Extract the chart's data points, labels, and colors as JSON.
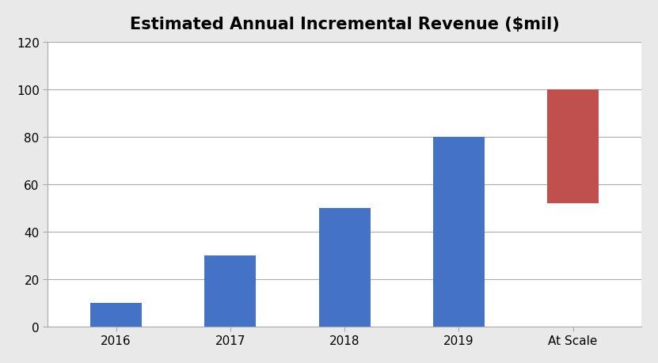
{
  "title": "Estimated Annual Incremental Revenue ($mil)",
  "categories": [
    "2016",
    "2017",
    "2018",
    "2019",
    "At Scale"
  ],
  "bar_bottoms": [
    0,
    0,
    0,
    0,
    52
  ],
  "bar_heights": [
    10,
    30,
    50,
    80,
    48
  ],
  "bar_colors": [
    "#4472C4",
    "#4472C4",
    "#4472C4",
    "#4472C4",
    "#C0504D"
  ],
  "ylim": [
    0,
    120
  ],
  "yticks": [
    0,
    20,
    40,
    60,
    80,
    100,
    120
  ],
  "title_fontsize": 15,
  "tick_fontsize": 11,
  "background_color": "#E9E9E9",
  "plot_bg_color": "#FFFFFF",
  "grid_color": "#AAAAAA",
  "bar_width": 0.45
}
